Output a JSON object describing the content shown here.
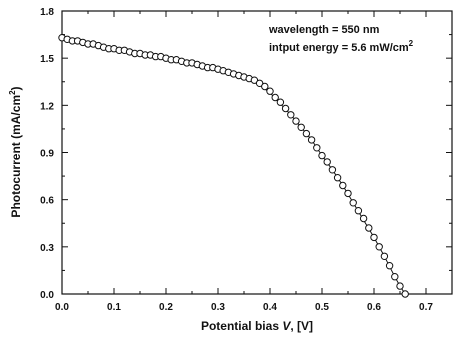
{
  "chart_data": {
    "type": "scatter",
    "title": "",
    "xlabel_prefix": "Potential bias ",
    "xlabel_var": "V",
    "xlabel_suffix": ", [V]",
    "ylabel_main": "Photocurrent (mA/cm",
    "ylabel_sup": "2",
    "ylabel_close": ")",
    "xlim": [
      0.0,
      0.75
    ],
    "ylim": [
      0.0,
      1.8
    ],
    "x_ticks": [
      "0.0",
      "0.1",
      "0.2",
      "0.3",
      "0.4",
      "0.5",
      "0.6",
      "0.7"
    ],
    "y_ticks": [
      "0.0",
      "0.3",
      "0.6",
      "0.9",
      "1.2",
      "1.5",
      "1.8"
    ],
    "annotations": {
      "wavelength": "wavelength = 550 nm",
      "energy_main": "intput energy = 5.6 mW/cm",
      "energy_sup": "2"
    },
    "fit_line": {
      "x": [
        0.0,
        0.05,
        0.1,
        0.15,
        0.2,
        0.25,
        0.3,
        0.35,
        0.38,
        0.4,
        0.42,
        0.44,
        0.46,
        0.48,
        0.5,
        0.52,
        0.54,
        0.56,
        0.58,
        0.6,
        0.62,
        0.64,
        0.65,
        0.66
      ],
      "y": [
        1.64,
        1.6,
        1.56,
        1.53,
        1.5,
        1.47,
        1.43,
        1.38,
        1.33,
        1.28,
        1.21,
        1.14,
        1.06,
        0.98,
        0.88,
        0.79,
        0.69,
        0.58,
        0.47,
        0.36,
        0.24,
        0.11,
        0.05,
        0.0
      ]
    },
    "series": [
      {
        "marker": "open-circle",
        "x": [
          0.0,
          0.01,
          0.02,
          0.03,
          0.04,
          0.05,
          0.06,
          0.07,
          0.08,
          0.09,
          0.1,
          0.11,
          0.12,
          0.13,
          0.14,
          0.15,
          0.16,
          0.17,
          0.18,
          0.19,
          0.2,
          0.21,
          0.22,
          0.23,
          0.24,
          0.25,
          0.26,
          0.27,
          0.28,
          0.29,
          0.3,
          0.31,
          0.32,
          0.33,
          0.34,
          0.35,
          0.36,
          0.37,
          0.38,
          0.39,
          0.4,
          0.41,
          0.42,
          0.43,
          0.44,
          0.45,
          0.46,
          0.47,
          0.48,
          0.49,
          0.5,
          0.51,
          0.52,
          0.53,
          0.54,
          0.55,
          0.56,
          0.57,
          0.58,
          0.59,
          0.6,
          0.61,
          0.62,
          0.63,
          0.64,
          0.65,
          0.66
        ],
        "y": [
          1.63,
          1.62,
          1.61,
          1.61,
          1.6,
          1.59,
          1.59,
          1.58,
          1.57,
          1.56,
          1.56,
          1.55,
          1.55,
          1.54,
          1.53,
          1.53,
          1.52,
          1.52,
          1.51,
          1.51,
          1.5,
          1.49,
          1.49,
          1.48,
          1.47,
          1.47,
          1.46,
          1.45,
          1.44,
          1.44,
          1.43,
          1.42,
          1.41,
          1.4,
          1.39,
          1.38,
          1.37,
          1.36,
          1.34,
          1.32,
          1.29,
          1.25,
          1.22,
          1.18,
          1.14,
          1.1,
          1.06,
          1.02,
          0.98,
          0.93,
          0.88,
          0.84,
          0.79,
          0.74,
          0.69,
          0.64,
          0.58,
          0.53,
          0.48,
          0.42,
          0.36,
          0.3,
          0.24,
          0.18,
          0.11,
          0.05,
          0.0
        ]
      }
    ],
    "grid": false,
    "legend": "none"
  }
}
